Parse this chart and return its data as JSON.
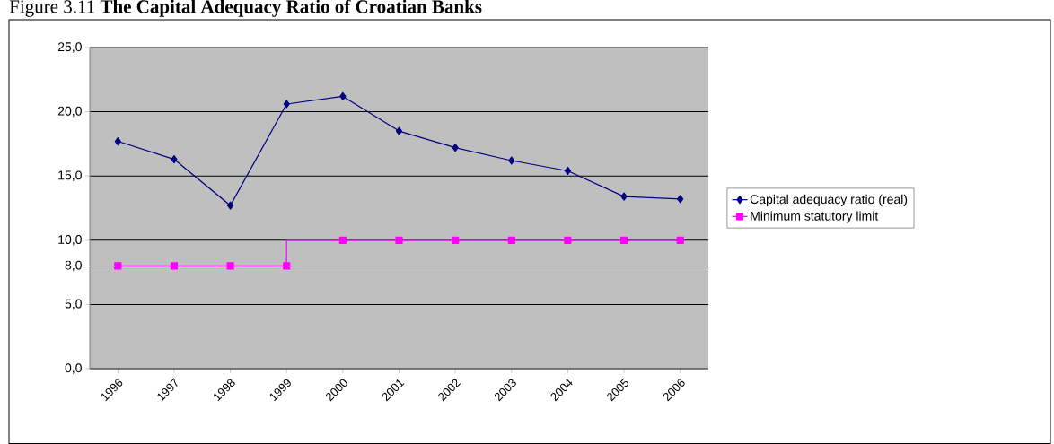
{
  "chart_data": {
    "type": "line",
    "title": "Figure 3.11 **The Capital Adequacy Ratio of Croatian Banks**",
    "categories": [
      "1996",
      "1997",
      "1998",
      "1999",
      "2000",
      "2001",
      "2002",
      "2003",
      "2004",
      "2005",
      "2006"
    ],
    "series": [
      {
        "name": "Capital adequacy ratio (real)",
        "color": "#000080",
        "marker": "diamond",
        "values": [
          17.7,
          16.3,
          12.7,
          20.6,
          21.2,
          18.5,
          17.2,
          16.2,
          15.4,
          13.4,
          13.2
        ]
      },
      {
        "name": "Minimum statutory limit",
        "type": "step",
        "color": "#ff00ff",
        "marker": "square",
        "values": [
          8,
          8,
          8,
          8,
          10,
          10,
          10,
          10,
          10,
          10,
          10
        ]
      }
    ],
    "ylim": [
      0,
      25
    ],
    "yticks": [
      {
        "value": 0,
        "label": "0,0"
      },
      {
        "value": 5,
        "label": "5,0"
      },
      {
        "value": 8,
        "label": "8,0"
      },
      {
        "value": 10,
        "label": "10,0"
      },
      {
        "value": 15,
        "label": "15,0"
      },
      {
        "value": 20,
        "label": "20,0"
      },
      {
        "value": 25,
        "label": "25,0"
      }
    ],
    "grid": "y",
    "legend": "right",
    "line_style": "solid"
  }
}
